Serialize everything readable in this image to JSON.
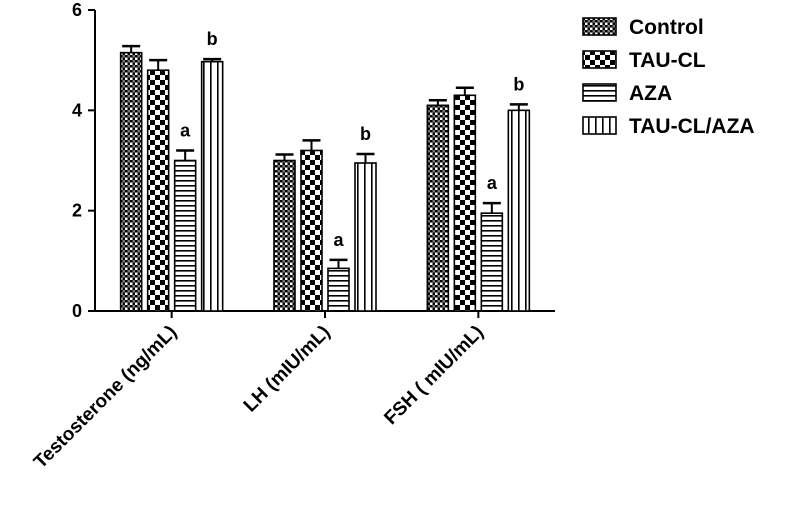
{
  "chart_data": {
    "type": "bar",
    "categories": [
      "Testosterone (ng/mL)",
      "LH (mIU/mL)",
      "FSH ( mIU/mL)"
    ],
    "series": [
      {
        "name": "Control",
        "values": [
          5.15,
          3.0,
          4.1
        ],
        "errors": [
          0.13,
          0.12,
          0.1
        ],
        "labels": [
          "",
          "",
          ""
        ],
        "pattern": "crosshatch"
      },
      {
        "name": "TAU-CL",
        "values": [
          4.8,
          3.2,
          4.3
        ],
        "errors": [
          0.2,
          0.2,
          0.15
        ],
        "labels": [
          "",
          "",
          ""
        ],
        "pattern": "checker"
      },
      {
        "name": "AZA",
        "values": [
          3.0,
          0.85,
          1.95
        ],
        "errors": [
          0.2,
          0.17,
          0.2
        ],
        "labels": [
          "a",
          "a",
          "a"
        ],
        "pattern": "horizontal"
      },
      {
        "name": "TAU-CL/AZA",
        "values": [
          4.97,
          2.95,
          4.0
        ],
        "errors": [
          0.05,
          0.18,
          0.12
        ],
        "labels": [
          "b",
          "b",
          "b"
        ],
        "pattern": "vertical"
      }
    ],
    "title": "",
    "xlabel": "",
    "ylabel": "",
    "ylim": [
      0,
      6
    ],
    "yticks": [
      "0",
      "2",
      "4",
      "6"
    ],
    "grid": false,
    "legend_position": "top-right"
  }
}
